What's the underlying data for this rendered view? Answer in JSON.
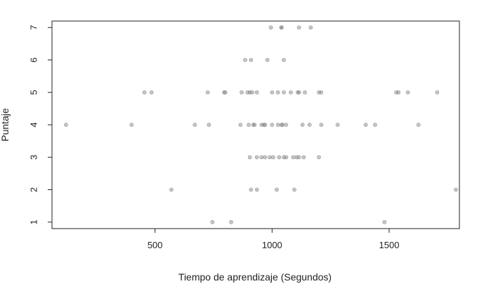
{
  "chart_data": {
    "type": "scatter",
    "title": "",
    "xlabel": "Tiempo de aprendizaje (Segundos)",
    "ylabel": "Puntaje",
    "xlim": [
      60,
      1800
    ],
    "ylim": [
      0.8,
      7.2
    ],
    "xticks": [
      500,
      1000,
      1500
    ],
    "xtick_labels": [
      "500",
      "1000",
      "1500"
    ],
    "yticks": [
      1,
      2,
      3,
      4,
      5,
      6,
      7
    ],
    "ytick_labels": [
      "1",
      "2",
      "3",
      "4",
      "5",
      "6",
      "7"
    ],
    "grid": false,
    "point_color": "#808080",
    "points": [
      {
        "x": 995,
        "y": 7
      },
      {
        "x": 1040,
        "y": 7
      },
      {
        "x": 1040,
        "y": 7
      },
      {
        "x": 1115,
        "y": 7
      },
      {
        "x": 1165,
        "y": 7
      },
      {
        "x": 885,
        "y": 6
      },
      {
        "x": 910,
        "y": 6
      },
      {
        "x": 980,
        "y": 6
      },
      {
        "x": 1050,
        "y": 6
      },
      {
        "x": 455,
        "y": 5
      },
      {
        "x": 485,
        "y": 5
      },
      {
        "x": 725,
        "y": 5
      },
      {
        "x": 795,
        "y": 5
      },
      {
        "x": 800,
        "y": 5
      },
      {
        "x": 870,
        "y": 5
      },
      {
        "x": 895,
        "y": 5
      },
      {
        "x": 905,
        "y": 5
      },
      {
        "x": 915,
        "y": 5
      },
      {
        "x": 935,
        "y": 5
      },
      {
        "x": 1000,
        "y": 5
      },
      {
        "x": 1025,
        "y": 5
      },
      {
        "x": 1050,
        "y": 5
      },
      {
        "x": 1080,
        "y": 5
      },
      {
        "x": 1110,
        "y": 5
      },
      {
        "x": 1115,
        "y": 5
      },
      {
        "x": 1140,
        "y": 5
      },
      {
        "x": 1200,
        "y": 5
      },
      {
        "x": 1210,
        "y": 5
      },
      {
        "x": 1530,
        "y": 5
      },
      {
        "x": 1540,
        "y": 5
      },
      {
        "x": 1580,
        "y": 5
      },
      {
        "x": 1705,
        "y": 5
      },
      {
        "x": 120,
        "y": 4
      },
      {
        "x": 400,
        "y": 4
      },
      {
        "x": 670,
        "y": 4
      },
      {
        "x": 730,
        "y": 4
      },
      {
        "x": 865,
        "y": 4
      },
      {
        "x": 900,
        "y": 4
      },
      {
        "x": 920,
        "y": 4
      },
      {
        "x": 925,
        "y": 4
      },
      {
        "x": 955,
        "y": 4
      },
      {
        "x": 965,
        "y": 4
      },
      {
        "x": 970,
        "y": 4
      },
      {
        "x": 1000,
        "y": 4
      },
      {
        "x": 1025,
        "y": 4
      },
      {
        "x": 1040,
        "y": 4
      },
      {
        "x": 1045,
        "y": 4
      },
      {
        "x": 1060,
        "y": 4
      },
      {
        "x": 1130,
        "y": 4
      },
      {
        "x": 1160,
        "y": 4
      },
      {
        "x": 1210,
        "y": 4
      },
      {
        "x": 1280,
        "y": 4
      },
      {
        "x": 1400,
        "y": 4
      },
      {
        "x": 1440,
        "y": 4
      },
      {
        "x": 1625,
        "y": 4
      },
      {
        "x": 905,
        "y": 3
      },
      {
        "x": 935,
        "y": 3
      },
      {
        "x": 955,
        "y": 3
      },
      {
        "x": 970,
        "y": 3
      },
      {
        "x": 990,
        "y": 3
      },
      {
        "x": 1005,
        "y": 3
      },
      {
        "x": 1030,
        "y": 3
      },
      {
        "x": 1050,
        "y": 3
      },
      {
        "x": 1060,
        "y": 3
      },
      {
        "x": 1090,
        "y": 3
      },
      {
        "x": 1105,
        "y": 3
      },
      {
        "x": 1115,
        "y": 3
      },
      {
        "x": 1135,
        "y": 3
      },
      {
        "x": 1200,
        "y": 3
      },
      {
        "x": 570,
        "y": 2
      },
      {
        "x": 910,
        "y": 2
      },
      {
        "x": 935,
        "y": 2
      },
      {
        "x": 1020,
        "y": 2
      },
      {
        "x": 1095,
        "y": 2
      },
      {
        "x": 1785,
        "y": 2
      },
      {
        "x": 745,
        "y": 1
      },
      {
        "x": 825,
        "y": 1
      },
      {
        "x": 1480,
        "y": 1
      }
    ]
  }
}
